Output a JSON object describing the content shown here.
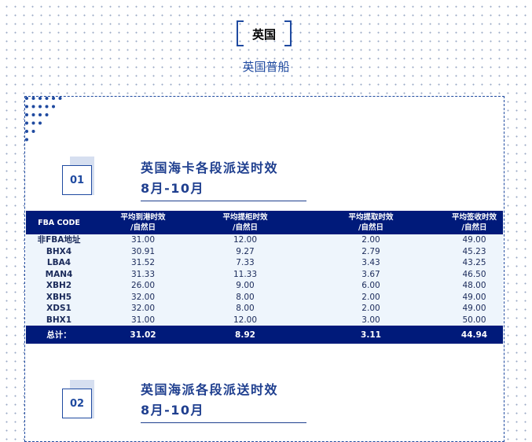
{
  "header": {
    "title": "英国",
    "subtitle": "英国普船"
  },
  "sections": [
    {
      "number": "01",
      "title": "英国海卡各段派送时效",
      "period": "8月-10月"
    },
    {
      "number": "02",
      "title": "英国海派各段派送时效",
      "period": "8月-10月"
    }
  ],
  "table": {
    "columns": [
      [
        "FBA CODE",
        ""
      ],
      [
        "平均到港时效",
        "/自然日"
      ],
      [
        "平均提柜时效",
        "/自然日"
      ],
      [
        "平均提取时效",
        "/自然日"
      ],
      [
        "平均签收时效",
        "/自然日"
      ]
    ],
    "rows": [
      [
        "非FBA地址",
        "31.00",
        "12.00",
        "2.00",
        "49.00"
      ],
      [
        "BHX4",
        "30.91",
        "9.27",
        "2.79",
        "45.23"
      ],
      [
        "LBA4",
        "31.52",
        "7.33",
        "3.43",
        "43.25"
      ],
      [
        "MAN4",
        "31.33",
        "11.33",
        "3.67",
        "46.50"
      ],
      [
        "XBH2",
        "26.00",
        "9.00",
        "6.00",
        "48.00"
      ],
      [
        "XBH5",
        "32.00",
        "8.00",
        "2.00",
        "49.00"
      ],
      [
        "XDS1",
        "32.00",
        "8.00",
        "2.00",
        "49.00"
      ],
      [
        "BHX1",
        "31.00",
        "12.00",
        "3.00",
        "50.00"
      ]
    ],
    "total": [
      "总计：",
      "31.02",
      "8.92",
      "3.11",
      "44.94"
    ]
  },
  "colors": {
    "accent": "#1f4aa0",
    "table_header": "#001a7a",
    "row_bg": "#eef5fc"
  }
}
